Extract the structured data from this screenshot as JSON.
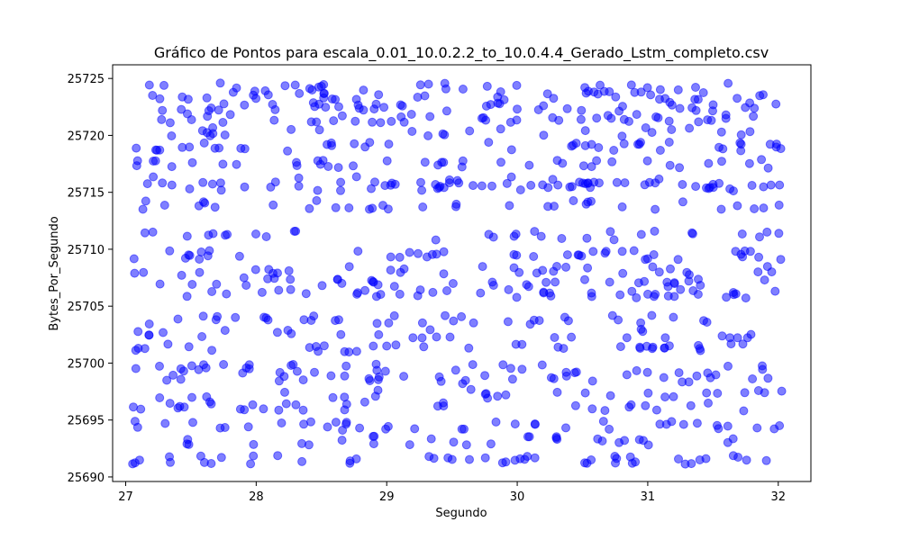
{
  "chart_data": {
    "type": "scatter",
    "title": "Gráfico de Pontos para escala_0.01_10.0.2.2_to_10.0.4.4_Gerado_Lstm_completo.csv",
    "xlabel": "Segundo",
    "ylabel": "Bytes_Por_Segundo",
    "xlim": [
      26.9,
      32.25
    ],
    "ylim": [
      25689.6,
      25726.2
    ],
    "xticks": [
      27,
      28,
      29,
      30,
      31,
      32
    ],
    "yticks": [
      25690,
      25695,
      25700,
      25705,
      25710,
      25715,
      25720,
      25725
    ],
    "grid": false,
    "marker_color": "#0000ff",
    "marker_alpha": 0.5,
    "x_range": [
      27.05,
      32.03
    ],
    "y_levels": [
      25691.5,
      25693.2,
      25694.5,
      25696.2,
      25697.3,
      25698.6,
      25699.5,
      25701.3,
      25702.6,
      25703.8,
      25706.1,
      25707.1,
      25708.1,
      25709.5,
      25711.2,
      25713.9,
      25715.5,
      25716.0,
      25717.5,
      25719.0,
      25720.3,
      25721.5,
      25722.5,
      25723.5,
      25724.2
    ]
  }
}
